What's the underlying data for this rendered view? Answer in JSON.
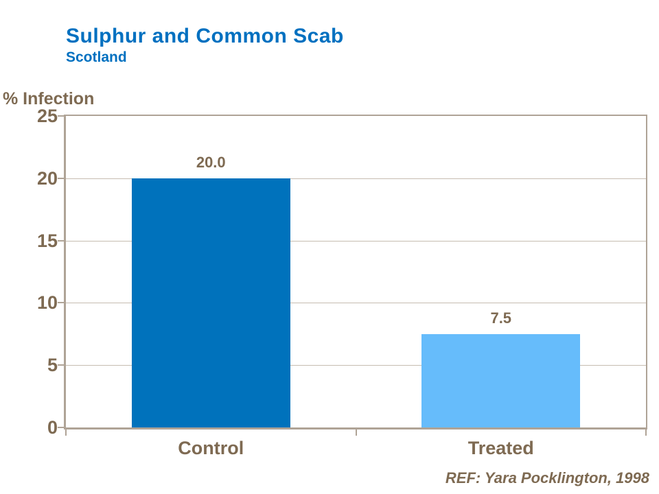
{
  "slide": {
    "title": "Sulphur and Common Scab",
    "subtitle": "Scotland",
    "reference": "REF: Yara Pocklington, 1998"
  },
  "colors": {
    "title_blue": "#0070C0",
    "text_brown": "#7E6A52",
    "axis_line": "#AFA396",
    "gridline": "#C6BCB0",
    "background": "#FFFFFF"
  },
  "chart_data": {
    "type": "bar",
    "title": "Sulphur and Common Scab",
    "subtitle": "Scotland",
    "categories": [
      "Control",
      "Treated"
    ],
    "values": [
      20.0,
      7.5
    ],
    "value_labels": [
      "20.0",
      "7.5"
    ],
    "bar_colors": [
      "#0072BC",
      "#66BCFB"
    ],
    "xlabel": "",
    "ylabel": "% Infection",
    "ylim": [
      0,
      25
    ],
    "yticks": [
      0,
      5,
      10,
      15,
      20,
      25
    ],
    "grid": true,
    "legend": false,
    "plot_border": true
  }
}
